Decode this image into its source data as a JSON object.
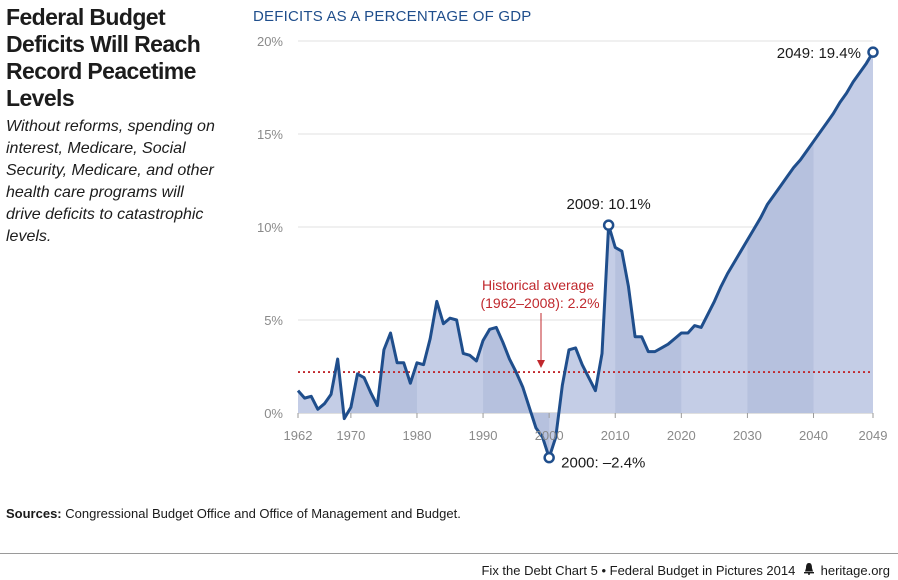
{
  "header": {
    "title": "Federal Budget Deficits Will Reach Record Peacetime Levels",
    "subtitle": "Without reforms, spending on interest, Medicare, Social Security, Medicare, and other health care programs will drive deficits to catastrophic levels."
  },
  "chart_data": {
    "type": "area",
    "title": "DEFICITS AS A PERCENTAGE OF GDP",
    "xlabel": "",
    "ylabel": "",
    "xlim": [
      1962,
      2049
    ],
    "ylim": [
      -2.4,
      20
    ],
    "x_ticks": [
      {
        "value": 1962,
        "label": "1962"
      },
      {
        "value": 1970,
        "label": "1970"
      },
      {
        "value": 1980,
        "label": "1980"
      },
      {
        "value": 1990,
        "label": "1990"
      },
      {
        "value": 2000,
        "label": "2000"
      },
      {
        "value": 2010,
        "label": "2010"
      },
      {
        "value": 2020,
        "label": "2020"
      },
      {
        "value": 2030,
        "label": "2030"
      },
      {
        "value": 2040,
        "label": "2040"
      },
      {
        "value": 2049,
        "label": "2049"
      }
    ],
    "y_ticks": [
      {
        "value": 0,
        "label": "0%"
      },
      {
        "value": 5,
        "label": "5%"
      },
      {
        "value": 10,
        "label": "10%"
      },
      {
        "value": 15,
        "label": "15%"
      },
      {
        "value": 20,
        "label": "20%"
      }
    ],
    "grid": true,
    "x": [
      1962,
      1963,
      1964,
      1965,
      1966,
      1967,
      1968,
      1969,
      1970,
      1971,
      1972,
      1973,
      1974,
      1975,
      1976,
      1977,
      1978,
      1979,
      1980,
      1981,
      1982,
      1983,
      1984,
      1985,
      1986,
      1987,
      1988,
      1989,
      1990,
      1991,
      1992,
      1993,
      1994,
      1995,
      1996,
      1997,
      1998,
      1999,
      2000,
      2001,
      2002,
      2003,
      2004,
      2005,
      2006,
      2007,
      2008,
      2009,
      2010,
      2011,
      2012,
      2013,
      2014,
      2015,
      2016,
      2017,
      2018,
      2019,
      2020,
      2021,
      2022,
      2023,
      2024,
      2025,
      2026,
      2027,
      2028,
      2029,
      2030,
      2031,
      2032,
      2033,
      2034,
      2035,
      2036,
      2037,
      2038,
      2039,
      2040,
      2041,
      2042,
      2043,
      2044,
      2045,
      2046,
      2047,
      2048,
      2049
    ],
    "series": [
      {
        "values": [
          1.2,
          0.8,
          0.9,
          0.2,
          0.5,
          1.0,
          2.9,
          -0.3,
          0.3,
          2.1,
          1.9,
          1.1,
          0.4,
          3.4,
          4.3,
          2.7,
          2.7,
          1.6,
          2.7,
          2.6,
          4.0,
          6.0,
          4.8,
          5.1,
          5.0,
          3.2,
          3.1,
          2.8,
          3.9,
          4.5,
          4.6,
          3.8,
          2.9,
          2.2,
          1.4,
          0.3,
          -0.8,
          -1.3,
          -2.4,
          -1.3,
          1.5,
          3.4,
          3.5,
          2.6,
          1.9,
          1.2,
          3.2,
          10.1,
          8.9,
          8.7,
          6.8,
          4.1,
          4.1,
          3.3,
          3.3,
          3.5,
          3.7,
          4.0,
          4.3,
          4.3,
          4.7,
          4.6,
          5.3,
          6.0,
          6.8,
          7.5,
          8.1,
          8.7,
          9.3,
          9.9,
          10.5,
          11.2,
          11.7,
          12.2,
          12.7,
          13.2,
          13.6,
          14.1,
          14.6,
          15.1,
          15.6,
          16.1,
          16.7,
          17.2,
          17.8,
          18.3,
          18.8,
          19.4
        ]
      }
    ],
    "reference_line": {
      "value": 2.2,
      "label_line1": "Historical average",
      "label_line2": "(1962–2008): 2.2%",
      "color": "#c0282d"
    },
    "annotations": [
      {
        "x": 2000,
        "y": -2.4,
        "label": "2000: –2.4%"
      },
      {
        "x": 2009,
        "y": 10.1,
        "label": "2009: 10.1%"
      },
      {
        "x": 2049,
        "y": 19.4,
        "label": "2049: 19.4%"
      }
    ],
    "colors": {
      "line": "#1f4e8c",
      "fill": "#c4cde6",
      "fill_alt": "#b6c1de",
      "grid": "#e2e2e2",
      "axis_text": "#8a8a8a",
      "title": "#1f4e8c"
    }
  },
  "sources": {
    "label": "Sources:",
    "text": "Congressional Budget Office and Office of Management and Budget."
  },
  "footer": {
    "left": "Fix the Debt Chart 5",
    "separator": "•",
    "middle": "Federal Budget in Pictures 2014",
    "site": "heritage.org"
  }
}
